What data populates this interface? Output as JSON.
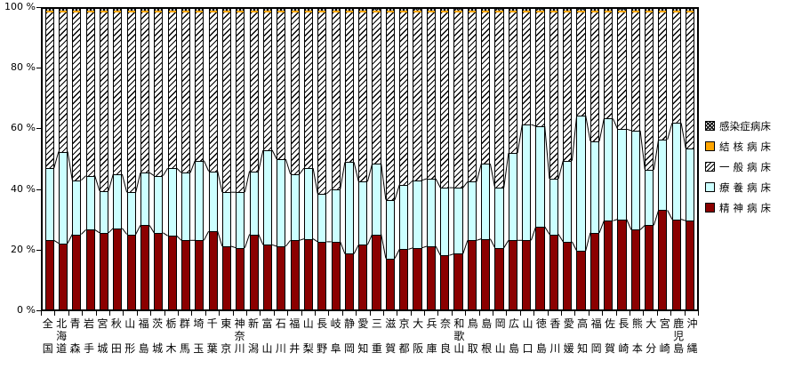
{
  "chart_data": {
    "type": "bar",
    "variant": "stacked-100-percent-columns-with-series-lines",
    "title": "",
    "xlabel": "",
    "ylabel": "",
    "ylim": [
      0,
      100
    ],
    "grid": false,
    "legend_position": "right",
    "y_tick_labels": [
      "100 %",
      "80 %",
      "60 %",
      "40 %",
      "20 %",
      "0 %"
    ],
    "categories": [
      "全国",
      "北海道",
      "青森",
      "岩手",
      "宮城",
      "秋田",
      "山形",
      "福島",
      "茨城",
      "栃木",
      "群馬",
      "埼玉",
      "千葉",
      "東京",
      "神奈川",
      "新潟",
      "富山",
      "石川",
      "福井",
      "山梨",
      "長野",
      "岐阜",
      "静岡",
      "愛知",
      "三重",
      "滋賀",
      "京都",
      "大阪",
      "兵庫",
      "奈良",
      "和歌山",
      "鳥取",
      "島根",
      "岡山",
      "広島",
      "山口",
      "徳島",
      "香川",
      "愛媛",
      "高知",
      "福岡",
      "佐賀",
      "長崎",
      "熊本",
      "大分",
      "宮崎",
      "鹿児島",
      "沖縄"
    ],
    "series": [
      {
        "key": "psychiatric",
        "name": "精神病床",
        "swatch": "darkred",
        "values": [
          23,
          22,
          25,
          26.5,
          25.5,
          27,
          25,
          28,
          25.5,
          24.5,
          23,
          23,
          26,
          21,
          20.5,
          25,
          21.5,
          21,
          23,
          23.5,
          22.5,
          22.5,
          18.5,
          21.5,
          25,
          17,
          20,
          20.5,
          21,
          18,
          18.5,
          23,
          23.5,
          20.5,
          23,
          23,
          27.5,
          25,
          22.5,
          19.5,
          25.5,
          29.5,
          30,
          26.5,
          28,
          33,
          30,
          29.5
        ]
      },
      {
        "key": "ryoyo",
        "name": "療養病床",
        "swatch": "cyan",
        "values": [
          24,
          30.5,
          18,
          18,
          14,
          18,
          14,
          17.5,
          19,
          22.5,
          22.5,
          26.5,
          20,
          18,
          18.5,
          21,
          31.5,
          29,
          22,
          23.5,
          16,
          17.5,
          30.5,
          21,
          23.5,
          19.5,
          21.5,
          22.5,
          22.5,
          22.5,
          22,
          19.5,
          25,
          20,
          29,
          38.5,
          33.5,
          18.5,
          27,
          45,
          30.5,
          34,
          30,
          33,
          18.5,
          23.5,
          32,
          24
        ]
      },
      {
        "key": "general",
        "name": "一般病床",
        "swatch": "hatch",
        "values": [
          51.8,
          46.3,
          55.8,
          54.3,
          59.3,
          53.8,
          59.8,
          53.3,
          54.3,
          51.8,
          53.3,
          49.3,
          52.8,
          59.8,
          59.8,
          52.8,
          45.8,
          48.8,
          53.8,
          51.8,
          60.3,
          58.8,
          49.8,
          56.3,
          50.3,
          62.3,
          57.3,
          55.8,
          55.3,
          58.3,
          58.3,
          56.3,
          50.3,
          58.3,
          46.8,
          37.3,
          37.8,
          55.3,
          49.3,
          34.3,
          42.8,
          35.3,
          38.8,
          39.3,
          52.3,
          42.3,
          36.8,
          45.3
        ]
      },
      {
        "key": "tuberculosis",
        "name": "結核病床",
        "swatch": "orange",
        "value_all": 0.6
      },
      {
        "key": "infectious",
        "name": "感染症病床",
        "swatch": "crosshatch",
        "value_all": 0.6
      }
    ],
    "colors": {
      "darkred": "#8B0000",
      "cyan": "#CCFFFF",
      "orange": "#FFA500",
      "hatch_line": "#000000",
      "series_line": "#000000"
    }
  },
  "legend": {
    "items": [
      {
        "label": "感染症病床",
        "swatch": "crosshatch"
      },
      {
        "label": "結核病床",
        "swatch": "orange"
      },
      {
        "label": "一般病床",
        "swatch": "hatch"
      },
      {
        "label": "療養病床",
        "swatch": "cyan"
      },
      {
        "label": "精神病床",
        "swatch": "darkred"
      }
    ]
  }
}
